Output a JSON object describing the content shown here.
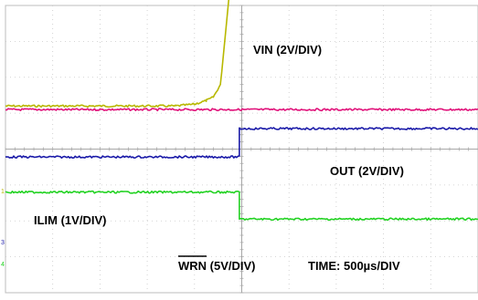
{
  "chart_data": {
    "type": "line",
    "time_scale": "TIME: 500µs/DIV",
    "grid": true,
    "x_divisions": 10,
    "y_divisions": 8,
    "series": [
      {
        "name": "VIN",
        "label": "VIN (2V/DIV)",
        "color": "#b8b800",
        "x": [
          0,
          3.6,
          4.0,
          4.25,
          4.4,
          4.55,
          4.75,
          5.0,
          5.1,
          5.2,
          10
        ],
        "y": [
          1.2,
          1.2,
          1.25,
          1.35,
          1.45,
          1.8,
          4.5,
          6.7,
          6.8,
          6.75,
          6.75
        ]
      },
      {
        "name": "OUT",
        "label": "OUT (2V/DIV)",
        "color": "#e0127a",
        "x": [
          0,
          10
        ],
        "y": [
          1.1,
          1.1
        ]
      },
      {
        "name": "ILIM",
        "label": "ILIM (1V/DIV)",
        "color": "#1a1aa8",
        "x": [
          0,
          4.95,
          4.95,
          10
        ],
        "y": [
          -0.22,
          -0.22,
          0.57,
          0.57
        ]
      },
      {
        "name": "WRN",
        "label": "WRN",
        "label_suffix": " (5V/DIV)",
        "color": "#22d222",
        "x": [
          0,
          4.95,
          4.95,
          10
        ],
        "y": [
          -1.2,
          -1.2,
          -1.95,
          -1.95
        ]
      }
    ]
  }
}
